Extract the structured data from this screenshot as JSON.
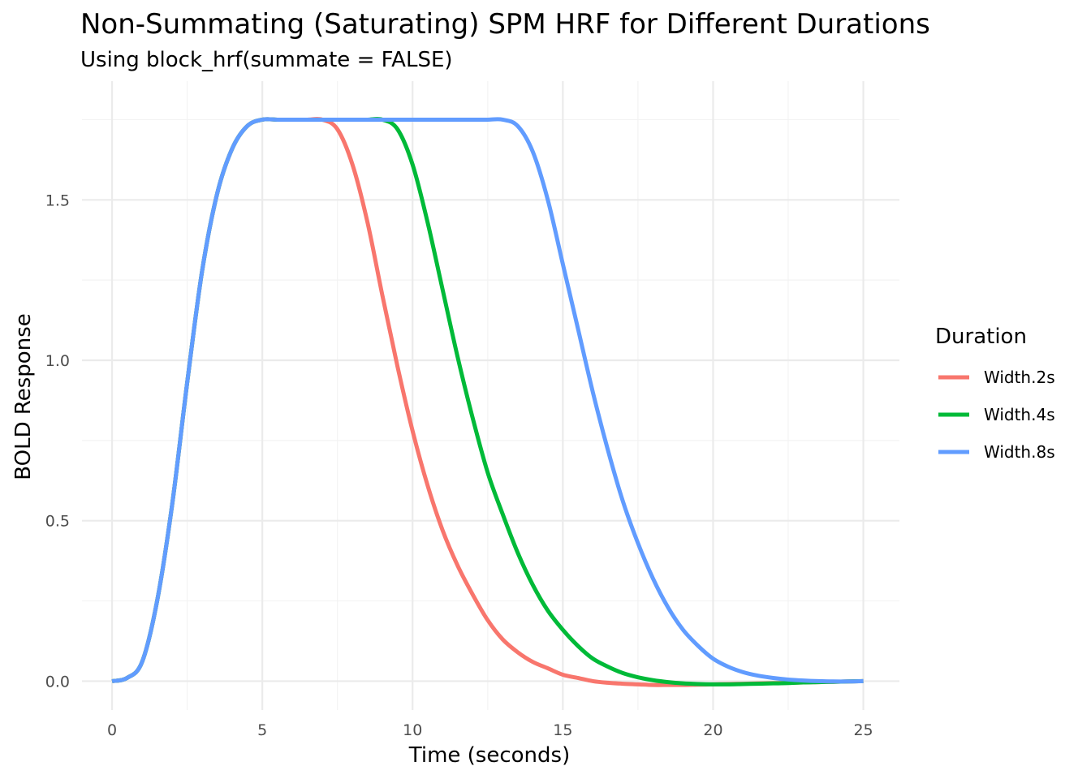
{
  "chart_data": {
    "type": "line",
    "title": "Non-Summating (Saturating) SPM HRF for Different Durations",
    "subtitle": "Using block_hrf(summate = FALSE)",
    "xlabel": "Time (seconds)",
    "ylabel": "BOLD Response",
    "xlim": [
      -1.0,
      26.2
    ],
    "ylim": [
      -0.09,
      1.87
    ],
    "x_ticks": [
      0,
      5,
      10,
      15,
      20,
      25
    ],
    "x_tick_labels": [
      "0",
      "5",
      "10",
      "15",
      "20",
      "25"
    ],
    "y_ticks": [
      0.0,
      0.5,
      1.0,
      1.5
    ],
    "y_tick_labels": [
      "0.0",
      "0.5",
      "1.0",
      "1.5"
    ],
    "grid": true,
    "legend": {
      "title": "Duration",
      "position": "right"
    },
    "series": [
      {
        "name": "Width.2s",
        "color": "#F8766D",
        "x": [
          0,
          0.5,
          1,
          1.5,
          2,
          2.5,
          3,
          3.5,
          4,
          4.5,
          5,
          5.5,
          6,
          6.5,
          7,
          7.5,
          8,
          8.5,
          9,
          9.5,
          10,
          10.5,
          11,
          11.5,
          12,
          12.5,
          13,
          13.5,
          14,
          14.5,
          15,
          15.5,
          16,
          16.5,
          17,
          17.5,
          18,
          18.5,
          19,
          19.5,
          20,
          20.5,
          21,
          21.5,
          22,
          22.5,
          23,
          23.5,
          24,
          24.5,
          25
        ],
        "y": [
          0,
          0.01,
          0.06,
          0.25,
          0.55,
          0.93,
          1.28,
          1.52,
          1.66,
          1.73,
          1.75,
          1.75,
          1.75,
          1.75,
          1.75,
          1.72,
          1.61,
          1.43,
          1.2,
          0.98,
          0.78,
          0.61,
          0.47,
          0.36,
          0.27,
          0.19,
          0.13,
          0.09,
          0.06,
          0.04,
          0.02,
          0.01,
          0.0,
          -0.005,
          -0.008,
          -0.01,
          -0.012,
          -0.012,
          -0.012,
          -0.011,
          -0.01,
          -0.009,
          -0.008,
          -0.007,
          -0.006,
          -0.005,
          -0.004,
          -0.003,
          -0.002,
          -0.001,
          0
        ]
      },
      {
        "name": "Width.4s",
        "color": "#00BA38",
        "x": [
          0,
          0.5,
          1,
          1.5,
          2,
          2.5,
          3,
          3.5,
          4,
          4.5,
          5,
          5.5,
          6,
          6.5,
          7,
          7.5,
          8,
          8.5,
          9,
          9.5,
          10,
          10.5,
          11,
          11.5,
          12,
          12.5,
          13,
          13.5,
          14,
          14.5,
          15,
          15.5,
          16,
          16.5,
          17,
          17.5,
          18,
          18.5,
          19,
          19.5,
          20,
          20.5,
          21,
          21.5,
          22,
          22.5,
          23,
          23.5,
          24,
          24.5,
          25
        ],
        "y": [
          0,
          0.01,
          0.06,
          0.25,
          0.55,
          0.93,
          1.28,
          1.52,
          1.66,
          1.73,
          1.75,
          1.75,
          1.75,
          1.75,
          1.75,
          1.75,
          1.75,
          1.75,
          1.75,
          1.72,
          1.61,
          1.43,
          1.22,
          1.01,
          0.82,
          0.65,
          0.52,
          0.4,
          0.3,
          0.22,
          0.16,
          0.11,
          0.07,
          0.045,
          0.025,
          0.012,
          0.003,
          -0.003,
          -0.007,
          -0.009,
          -0.01,
          -0.01,
          -0.009,
          -0.008,
          -0.007,
          -0.006,
          -0.004,
          -0.003,
          -0.002,
          -0.001,
          0
        ]
      },
      {
        "name": "Width.8s",
        "color": "#619CFF",
        "x": [
          0,
          0.5,
          1,
          1.5,
          2,
          2.5,
          3,
          3.5,
          4,
          4.5,
          5,
          5.5,
          6,
          6.5,
          7,
          7.5,
          8,
          8.5,
          9,
          9.5,
          10,
          10.5,
          11,
          11.5,
          12,
          12.5,
          13,
          13.5,
          14,
          14.5,
          15,
          15.5,
          16,
          16.5,
          17,
          17.5,
          18,
          18.5,
          19,
          19.5,
          20,
          20.5,
          21,
          21.5,
          22,
          22.5,
          23,
          23.5,
          24,
          24.5,
          25
        ],
        "y": [
          0,
          0.01,
          0.06,
          0.25,
          0.55,
          0.93,
          1.28,
          1.52,
          1.66,
          1.73,
          1.75,
          1.75,
          1.75,
          1.75,
          1.75,
          1.75,
          1.75,
          1.75,
          1.75,
          1.75,
          1.75,
          1.75,
          1.75,
          1.75,
          1.75,
          1.75,
          1.75,
          1.73,
          1.65,
          1.5,
          1.3,
          1.1,
          0.9,
          0.72,
          0.56,
          0.43,
          0.32,
          0.23,
          0.16,
          0.11,
          0.07,
          0.045,
          0.028,
          0.017,
          0.01,
          0.005,
          0.002,
          0.0,
          -0.001,
          -0.001,
          0
        ]
      }
    ]
  }
}
